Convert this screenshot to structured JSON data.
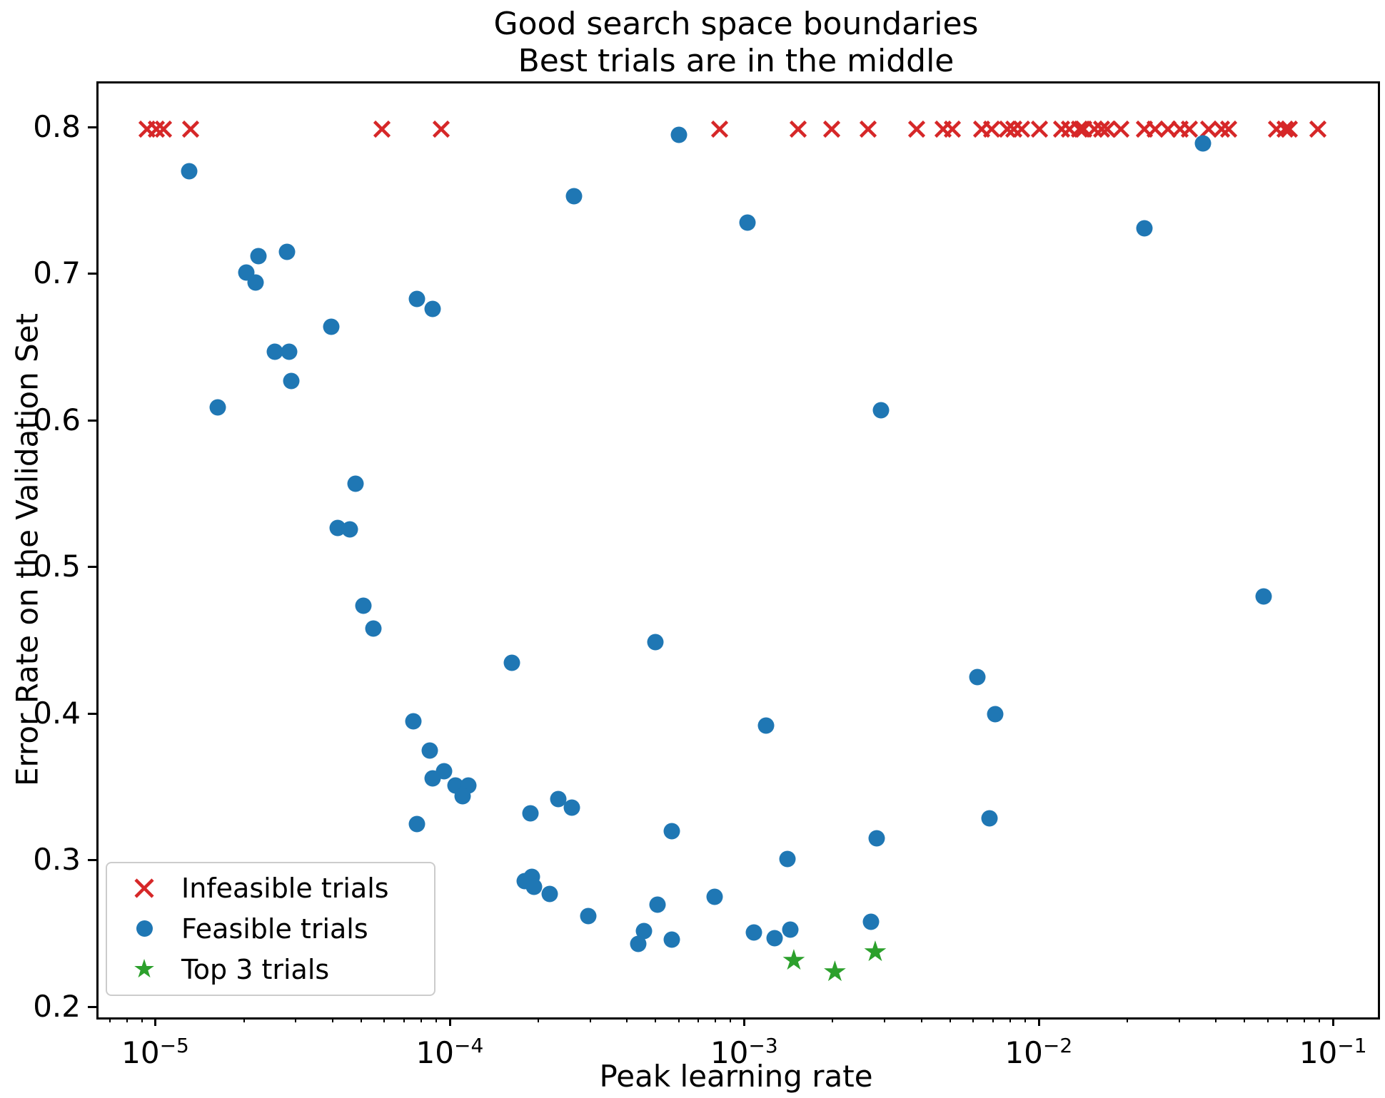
{
  "title": {
    "line1": "Good search space boundaries",
    "line2": "Best trials are in the middle"
  },
  "axes": {
    "xlabel": "Peak learning rate",
    "ylabel": "Error Rate on the Validation Set",
    "x_scale": "log",
    "x_ticks": [
      {
        "value": 1e-05,
        "base": "10",
        "exponent": "−5"
      },
      {
        "value": 0.0001,
        "base": "10",
        "exponent": "−4"
      },
      {
        "value": 0.001,
        "base": "10",
        "exponent": "−3"
      },
      {
        "value": 0.01,
        "base": "10",
        "exponent": "−2"
      },
      {
        "value": 0.1,
        "base": "10",
        "exponent": "−1"
      }
    ],
    "y_ticks": [
      {
        "value": 0.2,
        "label": "0.2"
      },
      {
        "value": 0.3,
        "label": "0.3"
      },
      {
        "value": 0.4,
        "label": "0.4"
      },
      {
        "value": 0.5,
        "label": "0.5"
      },
      {
        "value": 0.6,
        "label": "0.6"
      },
      {
        "value": 0.7,
        "label": "0.7"
      },
      {
        "value": 0.8,
        "label": "0.8"
      }
    ]
  },
  "legend": {
    "items": [
      {
        "label": "Infeasible trials",
        "marker": "x",
        "color": "#d62728"
      },
      {
        "label": "Feasible trials",
        "marker": "circle",
        "color": "#1f77b4"
      },
      {
        "label": "Top 3 trials",
        "marker": "star",
        "color": "#2ca02c"
      }
    ]
  },
  "colors": {
    "infeasible": "#d62728",
    "feasible": "#1f77b4",
    "top3": "#2ca02c",
    "spine": "#000000"
  },
  "chart_data": {
    "type": "scatter",
    "title": "Good search space boundaries\nBest trials are in the middle",
    "xlabel": "Peak learning rate",
    "ylabel": "Error Rate on the Validation Set",
    "x_scale": "log",
    "xlim_log10": [
      -5.2,
      -0.855
    ],
    "ylim": [
      0.194,
      0.831
    ],
    "grid": false,
    "legend_position": "lower left",
    "series": [
      {
        "name": "Infeasible trials",
        "marker": "x",
        "color": "#d62728",
        "points": [
          [
            9.2e-06,
            0.8
          ],
          [
            9.9e-06,
            0.8
          ],
          [
            1.05e-05,
            0.8
          ],
          [
            1.3e-05,
            0.8
          ],
          [
            5.8e-05,
            0.8
          ],
          [
            9.2e-05,
            0.8
          ],
          [
            0.00081,
            0.8
          ],
          [
            0.0015,
            0.8
          ],
          [
            0.00195,
            0.8
          ],
          [
            0.0026,
            0.8
          ],
          [
            0.0038,
            0.8
          ],
          [
            0.00465,
            0.8
          ],
          [
            0.005,
            0.8
          ],
          [
            0.0063,
            0.8
          ],
          [
            0.0068,
            0.8
          ],
          [
            0.0077,
            0.8
          ],
          [
            0.0081,
            0.8
          ],
          [
            0.0086,
            0.8
          ],
          [
            0.0099,
            0.8
          ],
          [
            0.0118,
            0.8
          ],
          [
            0.0125,
            0.8
          ],
          [
            0.0135,
            0.8
          ],
          [
            0.014,
            0.8
          ],
          [
            0.0152,
            0.8
          ],
          [
            0.0161,
            0.8
          ],
          [
            0.0168,
            0.8
          ],
          [
            0.0187,
            0.8
          ],
          [
            0.0225,
            0.8
          ],
          [
            0.0244,
            0.8
          ],
          [
            0.027,
            0.8
          ],
          [
            0.0297,
            0.8
          ],
          [
            0.032,
            0.8
          ],
          [
            0.0372,
            0.8
          ],
          [
            0.0411,
            0.8
          ],
          [
            0.0435,
            0.8
          ],
          [
            0.0632,
            0.8
          ],
          [
            0.0676,
            0.8
          ],
          [
            0.0698,
            0.8
          ],
          [
            0.0873,
            0.8
          ]
        ]
      },
      {
        "name": "Feasible trials",
        "marker": "circle",
        "color": "#1f77b4",
        "points": [
          [
            1.28e-05,
            0.771
          ],
          [
            1.6e-05,
            0.61
          ],
          [
            2e-05,
            0.702
          ],
          [
            2.15e-05,
            0.695
          ],
          [
            2.2e-05,
            0.713
          ],
          [
            2.75e-05,
            0.716
          ],
          [
            2.5e-05,
            0.648
          ],
          [
            2.8e-05,
            0.648
          ],
          [
            2.85e-05,
            0.628
          ],
          [
            3.9e-05,
            0.665
          ],
          [
            7.6e-05,
            0.684
          ],
          [
            8.6e-05,
            0.677
          ],
          [
            4.7e-05,
            0.558
          ],
          [
            4.1e-05,
            0.528
          ],
          [
            4.5e-05,
            0.527
          ],
          [
            5e-05,
            0.475
          ],
          [
            5.4e-05,
            0.459
          ],
          [
            0.00016,
            0.436
          ],
          [
            7.4e-05,
            0.396
          ],
          [
            8.4e-05,
            0.376
          ],
          [
            9.4e-05,
            0.362
          ],
          [
            8.6e-05,
            0.357
          ],
          [
            0.000103,
            0.352
          ],
          [
            0.000114,
            0.352
          ],
          [
            0.000109,
            0.345
          ],
          [
            7.6e-05,
            0.326
          ],
          [
            0.000185,
            0.333
          ],
          [
            0.00023,
            0.343
          ],
          [
            0.000255,
            0.337
          ],
          [
            0.00056,
            0.321
          ],
          [
            0.000177,
            0.287
          ],
          [
            0.000187,
            0.29
          ],
          [
            0.00019,
            0.283
          ],
          [
            0.000215,
            0.278
          ],
          [
            0.00029,
            0.263
          ],
          [
            0.0005,
            0.271
          ],
          [
            0.00045,
            0.253
          ],
          [
            0.00043,
            0.244
          ],
          [
            0.00056,
            0.247
          ],
          [
            0.00059,
            0.796
          ],
          [
            0.0356,
            0.79
          ],
          [
            0.00277,
            0.316
          ],
          [
            0.00138,
            0.302
          ],
          [
            0.00078,
            0.276
          ],
          [
            0.00106,
            0.252
          ],
          [
            0.00125,
            0.248
          ],
          [
            0.00141,
            0.254
          ],
          [
            0.00265,
            0.259
          ],
          [
            0.00026,
            0.754
          ],
          [
            0.00101,
            0.736
          ],
          [
            0.00286,
            0.608
          ],
          [
            0.00049,
            0.45
          ],
          [
            0.00117,
            0.393
          ],
          [
            0.0061,
            0.426
          ],
          [
            0.007,
            0.401
          ],
          [
            0.0067,
            0.33
          ],
          [
            0.0225,
            0.732
          ],
          [
            0.057,
            0.481
          ]
        ]
      },
      {
        "name": "Top 3 trials",
        "marker": "star",
        "color": "#2ca02c",
        "points": [
          [
            0.00145,
            0.232
          ],
          [
            0.002,
            0.224
          ],
          [
            0.00274,
            0.238
          ]
        ]
      }
    ]
  }
}
